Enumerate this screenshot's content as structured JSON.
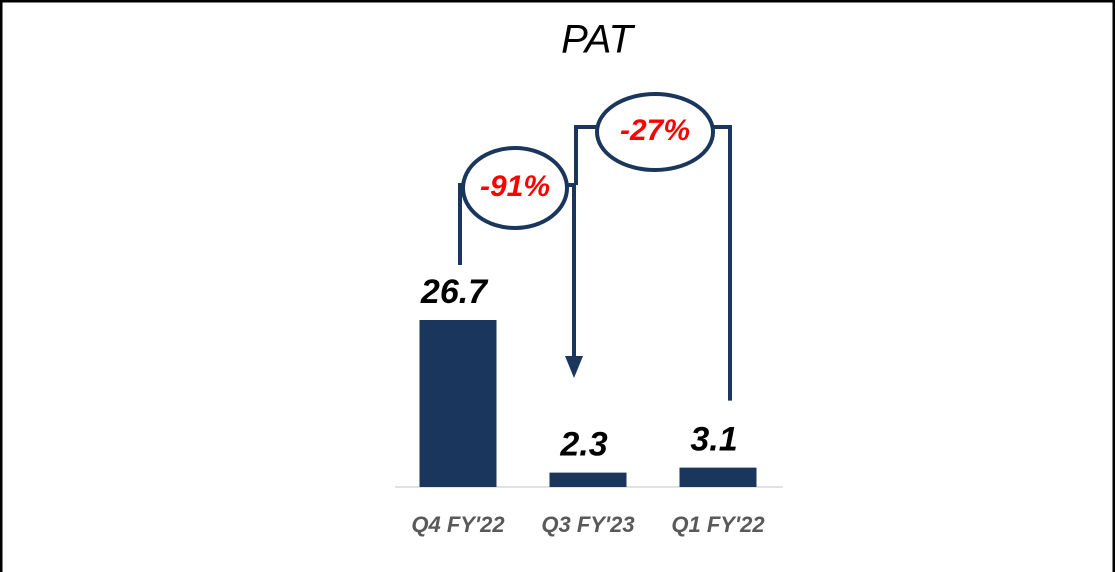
{
  "chart_data": {
    "type": "bar",
    "title": "PAT",
    "categories": [
      "Q4 FY'22",
      "Q3 FY'23",
      "Q1 FY'22"
    ],
    "values": [
      26.7,
      2.3,
      3.1
    ],
    "color": "#1b365d",
    "annotations": [
      "-91%",
      "-27%"
    ]
  }
}
